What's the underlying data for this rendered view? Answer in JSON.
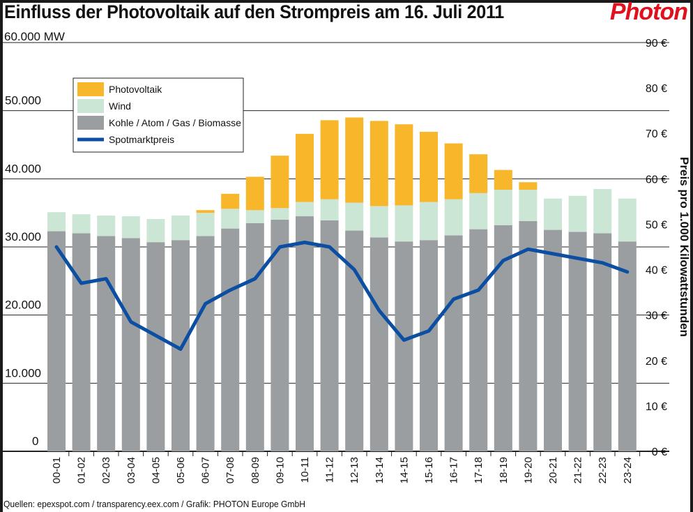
{
  "title": "Einfluss der Photovoltaik auf den Strompreis am 16. Juli 2011",
  "logo_text": "Photon",
  "source": "Quellen: epexspot.com / transparency.eex.com / Grafik: PHOTON Europe GmbH",
  "colors": {
    "photovoltaik": "#f8b62b",
    "wind": "#cbe6d4",
    "kohle": "#9a9ea1",
    "spotmarktpreis": "#0b4ea2",
    "logo": "#e0101d"
  },
  "chart_data": {
    "type": "bar",
    "stacked": true,
    "title": "Einfluss der Photovoltaik auf den Strompreis am 16. Juli 2011",
    "categories": [
      "00-01",
      "01-02",
      "02-03",
      "03-04",
      "04-05",
      "05-06",
      "06-07",
      "07-08",
      "08-09",
      "09-10",
      "10-11",
      "11-12",
      "12-13",
      "13-14",
      "14-15",
      "15-16",
      "16-17",
      "17-18",
      "18-19",
      "19-20",
      "20-21",
      "21-22",
      "22-23",
      "23-24"
    ],
    "left_axis": {
      "unit_label": "60.000 MW",
      "ylim": [
        0,
        60000
      ],
      "ticks": [
        0,
        10000,
        20000,
        30000,
        40000,
        50000
      ],
      "tick_labels": [
        "0",
        "10.000",
        "20.000",
        "30.000",
        "40.000",
        "50.000"
      ]
    },
    "right_axis": {
      "label": "Preis pro 1.000 Kilowattstunden",
      "ylim": [
        0,
        90
      ],
      "ticks": [
        0,
        10,
        20,
        30,
        40,
        50,
        60,
        70,
        80,
        90
      ],
      "tick_labels": [
        "0 €",
        "10 €",
        "20 €",
        "30 €",
        "40 €",
        "50 €",
        "60 €",
        "70 €",
        "80 €",
        "90 €"
      ]
    },
    "grid": true,
    "legend_position": "top-left",
    "series": [
      {
        "name": "Kohle / Atom / Gas / Biomasse",
        "axis": "left",
        "values": [
          32300,
          32000,
          31600,
          31300,
          30700,
          31000,
          31600,
          32700,
          33500,
          34000,
          34500,
          33900,
          32400,
          31400,
          30800,
          31000,
          31700,
          32600,
          33200,
          33800,
          32500,
          32200,
          32000,
          30800
        ]
      },
      {
        "name": "Wind",
        "axis": "left",
        "values": [
          2800,
          2800,
          3000,
          3200,
          3400,
          3600,
          3400,
          2900,
          1900,
          1700,
          2100,
          3100,
          4100,
          4600,
          5300,
          5600,
          5300,
          5300,
          5200,
          4600,
          4600,
          5300,
          6500,
          6300
        ]
      },
      {
        "name": "Photovoltaik",
        "axis": "left",
        "values": [
          0,
          0,
          0,
          0,
          0,
          0,
          400,
          2200,
          4900,
          7700,
          10000,
          11600,
          12500,
          12500,
          11900,
          10300,
          8200,
          5700,
          2900,
          1100,
          0,
          0,
          0,
          0
        ]
      },
      {
        "name": "Spotmarktpreis",
        "type": "line",
        "axis": "right",
        "values": [
          45,
          37,
          38,
          28.5,
          25.5,
          22.5,
          32.5,
          35.5,
          38,
          45,
          46,
          45,
          40,
          31,
          24.5,
          26.5,
          33.5,
          35.5,
          42,
          44.5,
          43.5,
          42.5,
          41.5,
          39.5
        ]
      }
    ]
  }
}
